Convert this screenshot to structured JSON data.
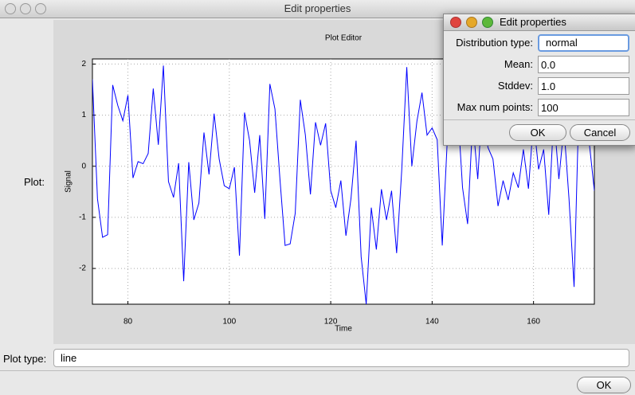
{
  "window": {
    "title": "Edit properties"
  },
  "plot_label": "Plot:",
  "chart_data": {
    "type": "line",
    "title": "Plot Editor",
    "x_label": "Time",
    "y_label": "Signal",
    "x": [
      73,
      74,
      75,
      76,
      77,
      78,
      79,
      80,
      81,
      82,
      83,
      84,
      85,
      86,
      87,
      88,
      89,
      90,
      91,
      92,
      93,
      94,
      95,
      96,
      97,
      98,
      99,
      100,
      101,
      102,
      103,
      104,
      105,
      106,
      107,
      108,
      109,
      110,
      111,
      112,
      113,
      114,
      115,
      116,
      117,
      118,
      119,
      120,
      121,
      122,
      123,
      124,
      125,
      126,
      127,
      128,
      129,
      130,
      131,
      132,
      133,
      134,
      135,
      136,
      137,
      138,
      139,
      140,
      141,
      142,
      143,
      144,
      145,
      146,
      147,
      148,
      149,
      150,
      151,
      152,
      153,
      154,
      155,
      156,
      157,
      158,
      159,
      160,
      161,
      162,
      163,
      164,
      165,
      166,
      167,
      168,
      169,
      170,
      171,
      172
    ],
    "values": [
      1.7,
      -0.64,
      -1.39,
      -1.34,
      1.59,
      1.19,
      0.89,
      1.39,
      -0.23,
      0.09,
      0.05,
      0.25,
      1.52,
      0.42,
      1.97,
      -0.3,
      -0.61,
      0.06,
      -2.25,
      0.08,
      -1.05,
      -0.72,
      0.66,
      -0.16,
      1.03,
      0.14,
      -0.38,
      -0.44,
      -0.02,
      -1.75,
      1.05,
      0.5,
      -0.52,
      0.61,
      -1.03,
      1.61,
      1.12,
      -0.27,
      -1.55,
      -1.52,
      -0.92,
      1.3,
      0.61,
      -0.55,
      0.86,
      0.41,
      0.84,
      -0.48,
      -0.81,
      -0.28,
      -1.36,
      -0.63,
      0.5,
      -1.77,
      -2.7,
      -0.81,
      -1.63,
      -0.45,
      -1.05,
      -0.48,
      -1.7,
      -0.09,
      1.94,
      0.0,
      0.88,
      1.44,
      0.61,
      0.75,
      0.52,
      -1.55,
      0.53,
      0.6,
      1.2,
      -0.42,
      -1.13,
      0.9,
      -0.25,
      1.4,
      0.37,
      0.14,
      -0.78,
      -0.28,
      -0.66,
      -0.13,
      -0.42,
      0.33,
      -0.44,
      0.9,
      -0.06,
      0.33,
      -0.95,
      1.0,
      -0.25,
      0.77,
      -0.64,
      -2.36,
      1.39,
      0.9,
      0.45,
      -0.48
    ],
    "color": "#0000ff",
    "xlim": [
      73,
      172
    ],
    "ylim": [
      -2.7,
      2.1
    ],
    "xticks": [
      80,
      100,
      120,
      140,
      160
    ],
    "yticks": [
      -2,
      -1,
      0,
      1,
      2
    ],
    "grid": true
  },
  "plot_type": {
    "label": "Plot type:",
    "value": "line"
  },
  "ok_button": "OK",
  "dialog": {
    "title": "Edit properties",
    "fields": [
      {
        "label": "Distribution type:",
        "value": "normal"
      },
      {
        "label": "Mean:",
        "value": "0.0"
      },
      {
        "label": "Stddev:",
        "value": "1.0"
      },
      {
        "label": "Max num points:",
        "value": "100"
      }
    ],
    "buttons": [
      "OK",
      "Cancel"
    ]
  }
}
